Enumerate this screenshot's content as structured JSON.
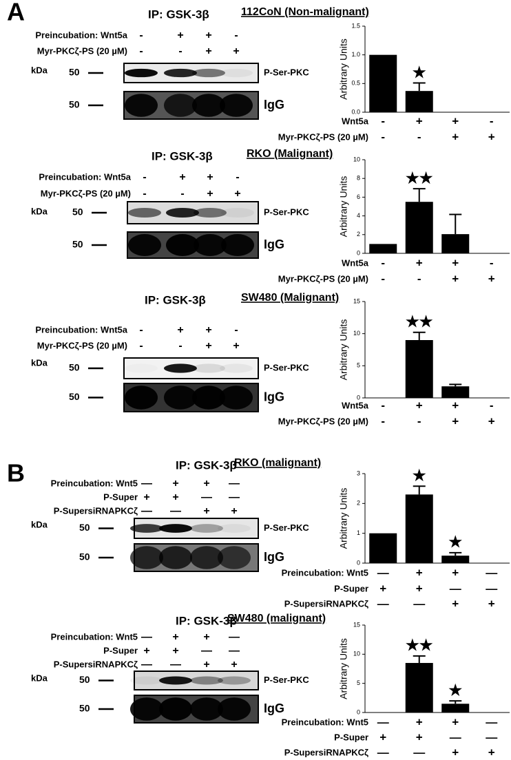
{
  "panel_labels": [
    "A",
    "B"
  ],
  "blots": [
    {
      "ip": "IP: GSK-3β",
      "cell_line": "112CoN (Non-malignant)",
      "kda": "kDa",
      "rows": [
        {
          "label": "Preincubation: Wnt5a",
          "marks": [
            "-",
            "+",
            "+",
            "-"
          ]
        },
        {
          "label": "Myr-PKCζ-PS (20 µM)",
          "marks": [
            "-",
            "-",
            "+",
            "+"
          ]
        }
      ],
      "bands": [
        {
          "mw": "50",
          "label": "P-Ser-PKC"
        },
        {
          "mw": "50",
          "label": "IgG"
        }
      ]
    },
    {
      "ip": "IP: GSK-3β",
      "cell_line": "RKO (Malignant)",
      "kda": "kDa",
      "rows": [
        {
          "label": "Preincubation: Wnt5a",
          "marks": [
            "-",
            "+",
            "+",
            "-"
          ]
        },
        {
          "label": "Myr-PKCζ-PS (20 µM)",
          "marks": [
            "-",
            "-",
            "+",
            "+"
          ]
        }
      ],
      "bands": [
        {
          "mw": "50",
          "label": "P-Ser-PKC"
        },
        {
          "mw": "50",
          "label": "IgG"
        }
      ]
    },
    {
      "ip": "IP: GSK-3β",
      "cell_line": "SW480 (Malignant)",
      "kda": "kDa",
      "rows": [
        {
          "label": "Preincubation: Wnt5a",
          "marks": [
            "-",
            "+",
            "+",
            "-"
          ]
        },
        {
          "label": "Myr-PKCζ-PS (20 µM)",
          "marks": [
            "-",
            "-",
            "+",
            "+"
          ]
        }
      ],
      "bands": [
        {
          "mw": "50",
          "label": "P-Ser-PKC"
        },
        {
          "mw": "50",
          "label": "IgG"
        }
      ]
    },
    {
      "ip": "IP: GSK-3β",
      "cell_line": "RKO (malignant)",
      "kda": "kDa",
      "rows": [
        {
          "label": "Preincubation:  Wnt5",
          "marks": [
            "—",
            "+",
            "+",
            "—"
          ]
        },
        {
          "label": "P-Super",
          "marks": [
            "+",
            "+",
            "—",
            "—"
          ]
        },
        {
          "label": "P-SupersiRNAPKCζ",
          "marks": [
            "—",
            "—",
            "+",
            "+"
          ]
        }
      ],
      "bands": [
        {
          "mw": "50",
          "label": "P-Ser-PKC"
        },
        {
          "mw": "50",
          "label": "IgG"
        }
      ]
    },
    {
      "ip": "IP: GSK-3β",
      "cell_line": "SW480 (malignant)",
      "kda": "kDa",
      "rows": [
        {
          "label": "Preincubation:  Wnt5",
          "marks": [
            "—",
            "+",
            "+",
            "—"
          ]
        },
        {
          "label": "P-Super",
          "marks": [
            "+",
            "+",
            "—",
            "—"
          ]
        },
        {
          "label": "P-SupersiRNAPKCζ",
          "marks": [
            "—",
            "—",
            "+",
            "+"
          ]
        }
      ],
      "bands": [
        {
          "mw": "50",
          "label": "P-Ser-PKC"
        },
        {
          "mw": "50",
          "label": "IgG"
        }
      ]
    }
  ],
  "chart_data": [
    {
      "type": "bar",
      "ylabel": "Arbitrary Units",
      "categories": [
        null,
        null,
        null,
        null
      ],
      "color": "#000000",
      "values": [
        1.0,
        0.37,
        0,
        0
      ],
      "errors": [
        0,
        0.14,
        0,
        0
      ],
      "annotations": [
        null,
        "★",
        null,
        null
      ],
      "ylim": [
        0,
        1.5
      ],
      "yticks": [
        {
          "value": 0,
          "label": "0.0"
        },
        {
          "value": 0.5,
          "label": "0.5"
        },
        {
          "value": 1,
          "label": "1.0"
        },
        {
          "value": 1.5,
          "label": "1.5"
        }
      ],
      "condition_rows": [
        {
          "label": "Wnt5a",
          "marks": [
            "-",
            "+",
            "+",
            "-"
          ]
        },
        {
          "label": "Myr-PKCζ-PS (20 µM)",
          "marks": [
            "-",
            "-",
            "+",
            "+"
          ]
        }
      ]
    },
    {
      "type": "bar",
      "ylabel": "Arbitrary Units",
      "categories": [
        null,
        null,
        null,
        null
      ],
      "color": "#000000",
      "values": [
        1,
        5.5,
        2.05,
        0
      ],
      "errors": [
        0,
        1.4,
        2.1,
        0
      ],
      "annotations": [
        null,
        "★★",
        null,
        null
      ],
      "ylim": [
        0,
        10
      ],
      "yticks": [
        0,
        2,
        4,
        6,
        8,
        10
      ],
      "condition_rows": [
        {
          "label": "Wnt5a",
          "marks": [
            "-",
            "+",
            "+",
            "-"
          ]
        },
        {
          "label": "Myr-PKCζ-PS (20 µM)",
          "marks": [
            "-",
            "-",
            "+",
            "+"
          ]
        }
      ]
    },
    {
      "type": "bar",
      "ylabel": "Arbitrary Units",
      "categories": [
        null,
        null,
        null,
        null
      ],
      "color": "#000000",
      "values": [
        0,
        9,
        1.8,
        0
      ],
      "errors": [
        0,
        1.2,
        0.3,
        0
      ],
      "annotations": [
        null,
        "★★",
        null,
        null
      ],
      "ylim": [
        0,
        15
      ],
      "yticks": [
        0,
        5,
        10,
        15
      ],
      "condition_rows": [
        {
          "label": "Wnt5a",
          "marks": [
            "-",
            "+",
            "+",
            "-"
          ]
        },
        {
          "label": "Myr-PKCζ-PS (20 µM)",
          "marks": [
            "-",
            "-",
            "+",
            "+"
          ]
        }
      ]
    },
    {
      "type": "bar",
      "ylabel": "Arbitrary Units",
      "categories": [
        null,
        null,
        null,
        null
      ],
      "color": "#000000",
      "values": [
        1,
        2.3,
        0.25,
        0
      ],
      "errors": [
        0,
        0.28,
        0.1,
        0
      ],
      "annotations": [
        null,
        "★",
        "★",
        null
      ],
      "ylim": [
        0,
        3
      ],
      "yticks": [
        0,
        1,
        2,
        3
      ],
      "condition_rows": [
        {
          "label": "Preincubation:  Wnt5",
          "marks": [
            "—",
            "+",
            "+",
            "—"
          ]
        },
        {
          "label": "P-Super",
          "marks": [
            "+",
            "+",
            "—",
            "—"
          ]
        },
        {
          "label": "P-SupersiRNAPKCζ",
          "marks": [
            "—",
            "—",
            "+",
            "+"
          ]
        }
      ]
    },
    {
      "type": "bar",
      "ylabel": "Arbitrary Units",
      "categories": [
        null,
        null,
        null,
        null
      ],
      "color": "#000000",
      "values": [
        0,
        8.5,
        1.5,
        0
      ],
      "errors": [
        0,
        1.2,
        0.5,
        0
      ],
      "annotations": [
        null,
        "★★",
        "★",
        null
      ],
      "ylim": [
        0,
        15
      ],
      "yticks": [
        0,
        5,
        10,
        15
      ],
      "condition_rows": [
        {
          "label": "Preincubation:  Wnt5",
          "marks": [
            "—",
            "+",
            "+",
            "—"
          ]
        },
        {
          "label": "P-Super",
          "marks": [
            "+",
            "+",
            "—",
            "—"
          ]
        },
        {
          "label": "P-SupersiRNAPKCζ",
          "marks": [
            "—",
            "—",
            "+",
            "+"
          ]
        }
      ]
    }
  ]
}
